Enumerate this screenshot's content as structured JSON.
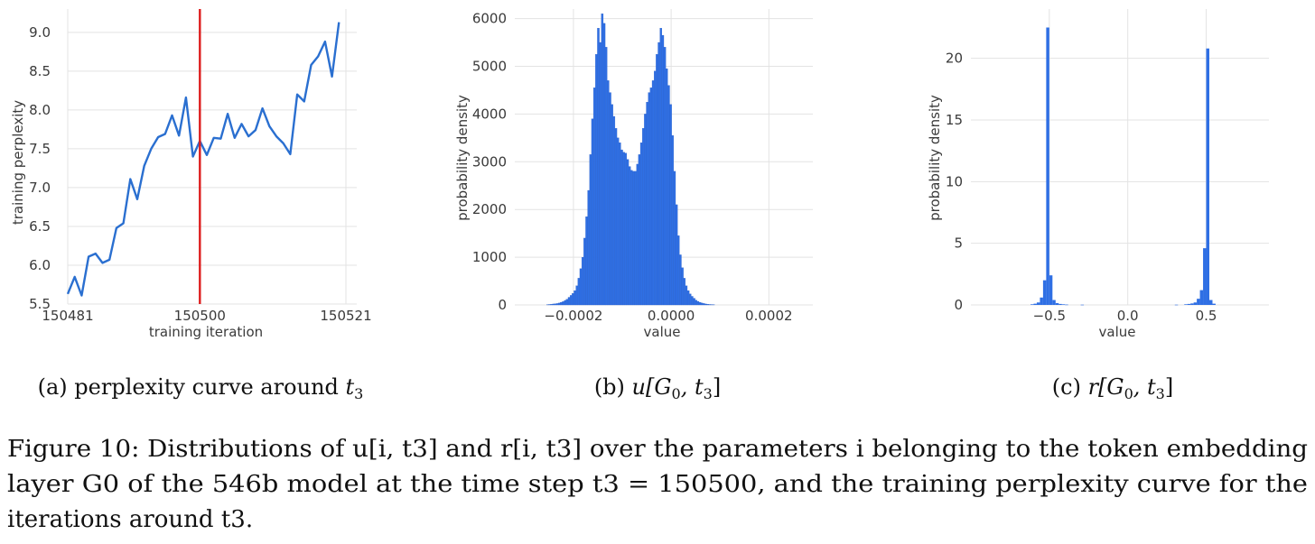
{
  "chart_data": [
    {
      "type": "line",
      "xlabel": "training iteration",
      "ylabel": "training perplexity",
      "xlim": [
        150481,
        150521
      ],
      "ylim": [
        5.5,
        9.3
      ],
      "xticks": [
        "150481",
        "150500",
        "150521"
      ],
      "yticks": [
        "5.5",
        "6.0",
        "6.5",
        "7.0",
        "7.5",
        "8.0",
        "8.5",
        "9.0"
      ],
      "grid": true,
      "marker_x": 150500,
      "marker_color": "#dd1c1c",
      "line_color": "#2a6fd0",
      "x": [
        150481,
        150482,
        150483,
        150484,
        150485,
        150486,
        150487,
        150488,
        150489,
        150490,
        150491,
        150492,
        150493,
        150494,
        150495,
        150496,
        150497,
        150498,
        150499,
        150500,
        150501,
        150502,
        150503,
        150504,
        150505,
        150506,
        150507,
        150508,
        150509,
        150510,
        150511,
        150512,
        150513,
        150514,
        150515,
        150516,
        150517,
        150518,
        150519,
        150520
      ],
      "y": [
        5.63,
        5.85,
        5.61,
        6.11,
        6.15,
        6.03,
        6.07,
        6.48,
        6.54,
        7.11,
        6.85,
        7.28,
        7.5,
        7.65,
        7.69,
        7.93,
        7.67,
        8.16,
        7.4,
        7.6,
        7.42,
        7.64,
        7.63,
        7.95,
        7.64,
        7.82,
        7.66,
        7.74,
        8.02,
        7.79,
        7.66,
        7.57,
        7.43,
        8.2,
        8.11,
        8.58,
        8.69,
        8.88,
        8.43,
        9.13
      ]
    },
    {
      "type": "bar",
      "xlabel": "value",
      "ylabel": "probability density",
      "xlim": [
        -0.00032,
        0.00029
      ],
      "ylim": [
        0,
        6200
      ],
      "xticks": [
        "−0.0002",
        "0.0000",
        "0.0002"
      ],
      "yticks": [
        "0",
        "1000",
        "2000",
        "3000",
        "4000",
        "5000",
        "6000"
      ],
      "grid": true,
      "bar_color": "#2f6fe4",
      "bin_start": -0.000255,
      "bin_width": 4e-06,
      "values": [
        6,
        10,
        15,
        20,
        25,
        30,
        40,
        55,
        70,
        95,
        120,
        160,
        200,
        240,
        300,
        400,
        560,
        760,
        1000,
        1400,
        1850,
        2400,
        3150,
        3900,
        4550,
        5250,
        5800,
        5500,
        6100,
        5900,
        5400,
        4700,
        4450,
        4200,
        3950,
        3700,
        3500,
        3400,
        3250,
        3200,
        3180,
        3050,
        2900,
        2820,
        2800,
        2800,
        2950,
        3150,
        3400,
        3700,
        4000,
        4250,
        4450,
        4550,
        4700,
        4900,
        5250,
        5500,
        5800,
        5650,
        5400,
        4950,
        4600,
        4200,
        3550,
        2800,
        2100,
        1450,
        1050,
        780,
        560,
        400,
        300,
        230,
        180,
        140,
        100,
        75,
        55,
        40,
        30,
        20,
        15,
        10,
        8,
        6
      ]
    },
    {
      "type": "bar",
      "xlabel": "value",
      "ylabel": "probability density",
      "xlim": [
        -1.0,
        0.9
      ],
      "ylim": [
        0,
        24
      ],
      "xticks": [
        "−0.5",
        "0.0",
        "0.5"
      ],
      "yticks": [
        "0",
        "5",
        "10",
        "15",
        "20"
      ],
      "grid": true,
      "bar_color": "#2f6fe4",
      "bins": [
        [
          -0.62,
          0.05
        ],
        [
          -0.6,
          0.1
        ],
        [
          -0.58,
          0.2
        ],
        [
          -0.56,
          0.6
        ],
        [
          -0.54,
          2.0
        ],
        [
          -0.52,
          22.5
        ],
        [
          -0.5,
          2.4
        ],
        [
          -0.48,
          0.4
        ],
        [
          -0.46,
          0.15
        ],
        [
          -0.44,
          0.08
        ],
        [
          -0.42,
          0.05
        ],
        [
          -0.4,
          0.03
        ],
        [
          -0.3,
          0.02
        ],
        [
          0.3,
          0.02
        ],
        [
          0.36,
          0.05
        ],
        [
          0.38,
          0.08
        ],
        [
          0.4,
          0.12
        ],
        [
          0.42,
          0.2
        ],
        [
          0.44,
          0.5
        ],
        [
          0.46,
          1.2
        ],
        [
          0.48,
          4.6
        ],
        [
          0.5,
          20.8
        ],
        [
          0.52,
          0.4
        ],
        [
          0.54,
          0.1
        ]
      ]
    }
  ],
  "captions": {
    "a_prefix": "(a) perplexity curve around ",
    "a_var": "t",
    "a_sub": "3",
    "b_prefix": "(b) ",
    "b_expr": "u[G",
    "b_sub0": "0",
    "b_mid": ", t",
    "b_sub3": "3",
    "b_end": "]",
    "c_prefix": "(c) ",
    "c_expr": "r[G",
    "c_sub0": "0",
    "c_mid": ", t",
    "c_sub3": "3",
    "c_end": "]"
  },
  "figure_caption": {
    "line1": "Figure 10: Distributions of u[i, t3] and r[i, t3] over the parameters i belonging to the token embedding",
    "line2": "layer G0 of the 546b model at the time step t3 = 150500, and the training perplexity curve for the",
    "line3": "iterations around t3."
  }
}
